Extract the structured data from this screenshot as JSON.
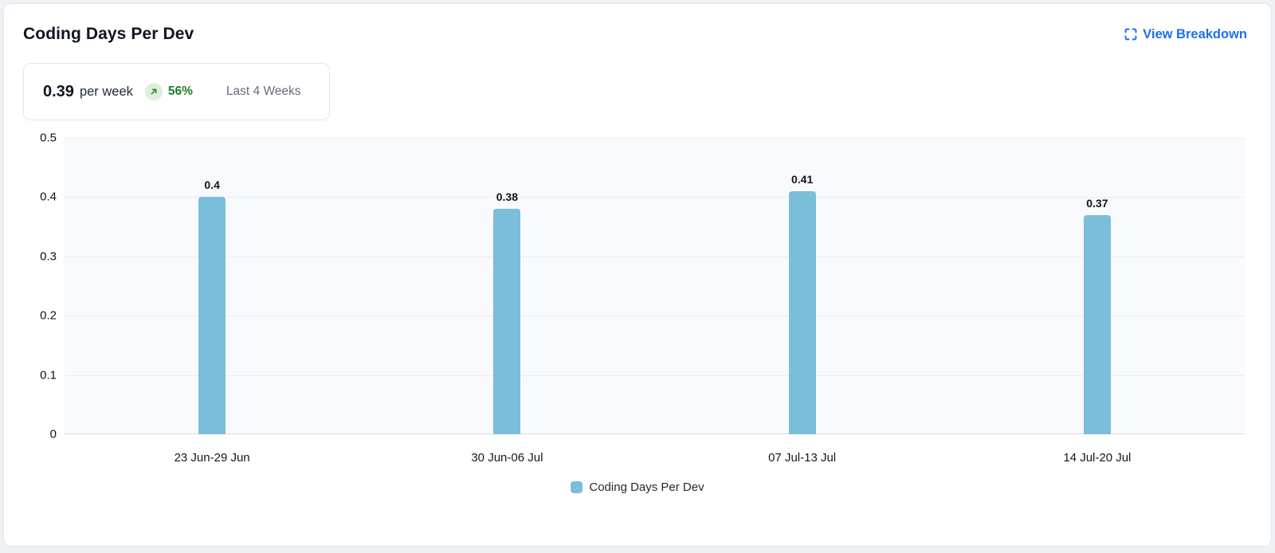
{
  "header": {
    "title": "Coding Days Per Dev",
    "view_breakdown_label": "View Breakdown"
  },
  "stat": {
    "value": "0.39",
    "unit": "per week",
    "trend_pct": "56%",
    "trend_direction": "up",
    "period": "Last 4 Weeks"
  },
  "legend": {
    "label": "Coding Days Per Dev"
  },
  "colors": {
    "bar": "#7abeda",
    "link_blue": "#1e6fe8",
    "trend_green": "#1e7e23",
    "trend_badge_bg": "#ddefdb",
    "trend_arrow": "#2e7d32",
    "plot_bg": "#f9fafd",
    "gridline": "#e9ebf0"
  },
  "chart_data": {
    "type": "bar",
    "title": "Coding Days Per Dev",
    "categories": [
      "23 Jun-29 Jun",
      "30 Jun-06 Jul",
      "07 Jul-13 Jul",
      "14 Jul-20 Jul"
    ],
    "values": [
      0.4,
      0.38,
      0.41,
      0.37
    ],
    "value_labels": [
      "0.4",
      "0.38",
      "0.41",
      "0.37"
    ],
    "series_name": "Coding Days Per Dev",
    "xlabel": "",
    "ylabel": "",
    "ylim": [
      0,
      0.5
    ],
    "yticks": [
      0,
      0.1,
      0.2,
      0.3,
      0.4,
      0.5
    ],
    "ytick_labels": [
      "0",
      "0.1",
      "0.2",
      "0.3",
      "0.4",
      "0.5"
    ],
    "grid": true,
    "legend_position": "bottom"
  }
}
